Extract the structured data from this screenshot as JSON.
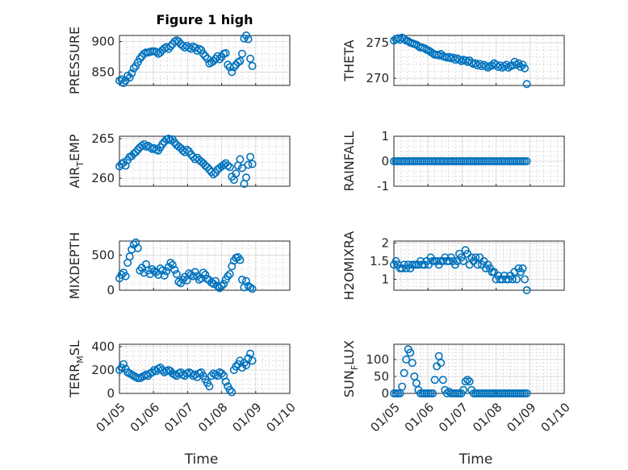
{
  "title": "Figure 1 high",
  "colors": {
    "series": "#0072bd",
    "axis": "#262626"
  },
  "x_axis": {
    "label": "Time",
    "tick_labels": [
      "01/05",
      "01/06",
      "01/07",
      "01/08",
      "01/09",
      "01/10"
    ],
    "xlim_days": [
      5,
      10
    ]
  },
  "chart_data": [
    {
      "type": "scatter",
      "ylabel": "PRESSURE",
      "ylim": [
        828,
        910
      ],
      "yticks": [
        850,
        900
      ],
      "title": "Figure 1 high",
      "grid": true,
      "x": [
        5.0,
        5.06,
        5.12,
        5.18,
        5.24,
        5.3,
        5.36,
        5.42,
        5.48,
        5.54,
        5.6,
        5.66,
        5.72,
        5.78,
        5.84,
        5.9,
        5.96,
        6.02,
        6.08,
        6.14,
        6.2,
        6.26,
        6.32,
        6.38,
        6.44,
        6.5,
        6.56,
        6.62,
        6.68,
        6.74,
        6.8,
        6.86,
        6.92,
        6.98,
        7.04,
        7.1,
        7.16,
        7.22,
        7.28,
        7.34,
        7.4,
        7.46,
        7.52,
        7.58,
        7.64,
        7.7,
        7.76,
        7.82,
        7.88,
        7.94,
        8.0,
        8.06,
        8.12,
        8.18,
        8.24,
        8.3,
        8.36,
        8.42,
        8.48,
        8.54,
        8.6,
        8.66,
        8.72,
        8.78,
        8.84,
        8.9
      ],
      "y": [
        836,
        838,
        832,
        836,
        844,
        841,
        848,
        856,
        860,
        866,
        872,
        876,
        880,
        882,
        882,
        883,
        884,
        884,
        883,
        880,
        882,
        886,
        889,
        891,
        888,
        892,
        896,
        900,
        902,
        900,
        896,
        893,
        890,
        893,
        890,
        888,
        892,
        890,
        885,
        888,
        886,
        880,
        876,
        872,
        864,
        866,
        868,
        872,
        876,
        871,
        875,
        880,
        881,
        862,
        858,
        850,
        858,
        862,
        866,
        868,
        880,
        905,
        910,
        904,
        872,
        860
      ]
    },
    {
      "type": "scatter",
      "ylabel": "THETA",
      "ylim": [
        269,
        276
      ],
      "yticks": [
        270,
        275
      ],
      "grid": true,
      "x": [
        5.0,
        5.06,
        5.12,
        5.18,
        5.24,
        5.3,
        5.36,
        5.42,
        5.48,
        5.54,
        5.6,
        5.66,
        5.72,
        5.78,
        5.84,
        5.9,
        5.96,
        6.02,
        6.08,
        6.14,
        6.2,
        6.26,
        6.32,
        6.38,
        6.44,
        6.5,
        6.56,
        6.62,
        6.68,
        6.74,
        6.8,
        6.86,
        6.92,
        6.98,
        7.04,
        7.1,
        7.16,
        7.22,
        7.28,
        7.34,
        7.4,
        7.46,
        7.52,
        7.58,
        7.64,
        7.7,
        7.76,
        7.82,
        7.88,
        7.94,
        8.0,
        8.06,
        8.12,
        8.18,
        8.24,
        8.3,
        8.36,
        8.42,
        8.48,
        8.54,
        8.6,
        8.66,
        8.72,
        8.78,
        8.84,
        8.9
      ],
      "y": [
        275.3,
        275.5,
        275.6,
        275.4,
        275.7,
        275.5,
        275.3,
        275.2,
        275.0,
        274.9,
        274.8,
        274.7,
        274.5,
        274.3,
        274.3,
        274.2,
        274.0,
        273.9,
        273.7,
        273.5,
        273.3,
        273.3,
        273.2,
        273.4,
        273.1,
        273.0,
        272.9,
        273.0,
        272.8,
        272.9,
        272.6,
        272.8,
        272.6,
        272.4,
        272.6,
        272.5,
        272.3,
        272.5,
        272.2,
        272.0,
        272.1,
        271.8,
        272.0,
        271.7,
        271.9,
        271.7,
        271.5,
        271.7,
        271.8,
        272.1,
        271.9,
        271.6,
        271.8,
        271.5,
        271.7,
        271.9,
        271.5,
        271.7,
        271.8,
        272.3,
        271.9,
        272.1,
        271.6,
        271.9,
        271.4,
        269.2
      ]
    },
    {
      "type": "scatter",
      "ylabel": "AIR_TEMP",
      "ylim": [
        259,
        265.3
      ],
      "yticks": [
        260,
        265
      ],
      "grid": true,
      "x": [
        5.0,
        5.06,
        5.12,
        5.18,
        5.24,
        5.3,
        5.36,
        5.42,
        5.48,
        5.54,
        5.6,
        5.66,
        5.72,
        5.78,
        5.84,
        5.9,
        5.96,
        6.02,
        6.08,
        6.14,
        6.2,
        6.26,
        6.32,
        6.38,
        6.44,
        6.5,
        6.56,
        6.62,
        6.68,
        6.74,
        6.8,
        6.86,
        6.92,
        6.98,
        7.04,
        7.1,
        7.16,
        7.22,
        7.28,
        7.34,
        7.4,
        7.46,
        7.52,
        7.58,
        7.64,
        7.7,
        7.76,
        7.82,
        7.88,
        7.94,
        8.0,
        8.06,
        8.12,
        8.18,
        8.24,
        8.3,
        8.36,
        8.42,
        8.48,
        8.54,
        8.6,
        8.66,
        8.72,
        8.78,
        8.84,
        8.9
      ],
      "y": [
        261.5,
        261.8,
        262.0,
        261.6,
        262.3,
        262.7,
        262.8,
        263.1,
        263.3,
        263.6,
        263.9,
        264.1,
        264.3,
        264.0,
        264.1,
        263.9,
        263.7,
        263.8,
        263.6,
        263.5,
        263.9,
        264.3,
        264.6,
        264.9,
        265.0,
        264.8,
        264.9,
        264.5,
        264.2,
        264.0,
        263.8,
        263.5,
        263.3,
        263.6,
        263.4,
        263.0,
        262.7,
        262.4,
        262.6,
        262.3,
        262.1,
        261.9,
        261.6,
        261.4,
        261.1,
        260.8,
        260.5,
        260.7,
        261.1,
        261.3,
        261.5,
        261.7,
        261.9,
        261.6,
        261.4,
        260.2,
        259.8,
        260.6,
        261.6,
        262.4,
        261.3,
        259.3,
        260.1,
        261.7,
        262.7,
        261.8
      ]
    },
    {
      "type": "scatter",
      "ylabel": "RAINFALL",
      "ylim": [
        -1,
        1
      ],
      "yticks": [
        -1,
        0,
        1
      ],
      "grid": true,
      "x": [
        5.0,
        5.06,
        5.12,
        5.18,
        5.24,
        5.3,
        5.36,
        5.42,
        5.48,
        5.54,
        5.6,
        5.66,
        5.72,
        5.78,
        5.84,
        5.9,
        5.96,
        6.02,
        6.08,
        6.14,
        6.2,
        6.26,
        6.32,
        6.38,
        6.44,
        6.5,
        6.56,
        6.62,
        6.68,
        6.74,
        6.8,
        6.86,
        6.92,
        6.98,
        7.04,
        7.1,
        7.16,
        7.22,
        7.28,
        7.34,
        7.4,
        7.46,
        7.52,
        7.58,
        7.64,
        7.7,
        7.76,
        7.82,
        7.88,
        7.94,
        8.0,
        8.06,
        8.12,
        8.18,
        8.24,
        8.3,
        8.36,
        8.42,
        8.48,
        8.54,
        8.6,
        8.66,
        8.72,
        8.78,
        8.84,
        8.9
      ],
      "y": [
        0,
        0,
        0,
        0,
        0,
        0,
        0,
        0,
        0,
        0,
        0,
        0,
        0,
        0,
        0,
        0,
        0,
        0,
        0,
        0,
        0,
        0,
        0,
        0,
        0,
        0,
        0,
        0,
        0,
        0,
        0,
        0,
        0,
        0,
        0,
        0,
        0,
        0,
        0,
        0,
        0,
        0,
        0,
        0,
        0,
        0,
        0,
        0,
        0,
        0,
        0,
        0,
        0,
        0,
        0,
        0,
        0,
        0,
        0,
        0,
        0,
        0,
        0,
        0,
        0,
        0
      ]
    },
    {
      "type": "scatter",
      "ylabel": "MIXDEPTH",
      "ylim": [
        0,
        700
      ],
      "yticks": [
        0,
        500
      ],
      "grid": true,
      "x": [
        5.0,
        5.06,
        5.12,
        5.18,
        5.24,
        5.3,
        5.36,
        5.42,
        5.48,
        5.54,
        5.6,
        5.66,
        5.72,
        5.78,
        5.84,
        5.9,
        5.96,
        6.02,
        6.08,
        6.14,
        6.2,
        6.26,
        6.32,
        6.38,
        6.44,
        6.5,
        6.56,
        6.62,
        6.68,
        6.74,
        6.8,
        6.86,
        6.92,
        6.98,
        7.04,
        7.1,
        7.16,
        7.22,
        7.28,
        7.34,
        7.4,
        7.46,
        7.52,
        7.58,
        7.64,
        7.7,
        7.76,
        7.82,
        7.88,
        7.94,
        8.0,
        8.06,
        8.12,
        8.18,
        8.24,
        8.3,
        8.36,
        8.42,
        8.48,
        8.54,
        8.6,
        8.66,
        8.72,
        8.78,
        8.84,
        8.9
      ],
      "y": [
        170,
        220,
        250,
        200,
        390,
        480,
        580,
        650,
        680,
        600,
        280,
        320,
        250,
        370,
        280,
        230,
        300,
        270,
        260,
        220,
        310,
        280,
        210,
        270,
        330,
        390,
        360,
        290,
        230,
        120,
        100,
        150,
        190,
        140,
        240,
        220,
        200,
        260,
        200,
        150,
        170,
        250,
        220,
        160,
        140,
        110,
        90,
        130,
        60,
        30,
        60,
        90,
        150,
        200,
        230,
        340,
        420,
        460,
        470,
        430,
        150,
        40,
        130,
        60,
        40,
        20
      ]
    },
    {
      "type": "scatter",
      "ylabel": "H2OMIXRA",
      "ylim": [
        0.7,
        2.05
      ],
      "yticks": [
        1,
        1.5,
        2
      ],
      "grid": true,
      "x": [
        5.0,
        5.06,
        5.12,
        5.18,
        5.24,
        5.3,
        5.36,
        5.42,
        5.48,
        5.54,
        5.6,
        5.66,
        5.72,
        5.78,
        5.84,
        5.9,
        5.96,
        6.02,
        6.08,
        6.14,
        6.2,
        6.26,
        6.32,
        6.38,
        6.44,
        6.5,
        6.56,
        6.62,
        6.68,
        6.74,
        6.8,
        6.86,
        6.92,
        6.98,
        7.04,
        7.1,
        7.16,
        7.22,
        7.28,
        7.34,
        7.4,
        7.46,
        7.52,
        7.58,
        7.64,
        7.7,
        7.76,
        7.82,
        7.88,
        7.94,
        8.0,
        8.06,
        8.12,
        8.18,
        8.24,
        8.3,
        8.36,
        8.42,
        8.48,
        8.54,
        8.6,
        8.66,
        8.72,
        8.78,
        8.84,
        8.9
      ],
      "y": [
        1.4,
        1.5,
        1.4,
        1.3,
        1.3,
        1.4,
        1.3,
        1.4,
        1.3,
        1.4,
        1.4,
        1.4,
        1.4,
        1.5,
        1.4,
        1.4,
        1.5,
        1.4,
        1.6,
        1.5,
        1.5,
        1.5,
        1.4,
        1.5,
        1.5,
        1.6,
        1.5,
        1.5,
        1.6,
        1.5,
        1.4,
        1.5,
        1.7,
        1.6,
        1.5,
        1.8,
        1.7,
        1.4,
        1.6,
        1.5,
        1.6,
        1.4,
        1.6,
        1.4,
        1.5,
        1.3,
        1.4,
        1.3,
        1.2,
        1.2,
        1.0,
        1.1,
        1.0,
        1.0,
        1.1,
        1.0,
        1.0,
        1.1,
        1.0,
        1.2,
        1.0,
        1.3,
        1.2,
        1.3,
        1.0,
        0.7
      ]
    },
    {
      "type": "scatter",
      "ylabel": "TERR_MSL",
      "ylim": [
        0,
        420
      ],
      "yticks": [
        0,
        200,
        400
      ],
      "grid": true,
      "x": [
        5.0,
        5.06,
        5.12,
        5.18,
        5.24,
        5.3,
        5.36,
        5.42,
        5.48,
        5.54,
        5.6,
        5.66,
        5.72,
        5.78,
        5.84,
        5.9,
        5.96,
        6.02,
        6.08,
        6.14,
        6.2,
        6.26,
        6.32,
        6.38,
        6.44,
        6.5,
        6.56,
        6.62,
        6.68,
        6.74,
        6.8,
        6.86,
        6.92,
        6.98,
        7.04,
        7.1,
        7.16,
        7.22,
        7.28,
        7.34,
        7.4,
        7.46,
        7.52,
        7.58,
        7.64,
        7.7,
        7.76,
        7.82,
        7.88,
        7.94,
        8.0,
        8.06,
        8.12,
        8.18,
        8.24,
        8.3,
        8.36,
        8.42,
        8.48,
        8.54,
        8.6,
        8.66,
        8.72,
        8.78,
        8.84,
        8.9
      ],
      "y": [
        200,
        220,
        250,
        210,
        180,
        170,
        160,
        150,
        140,
        130,
        130,
        140,
        150,
        160,
        150,
        170,
        180,
        200,
        190,
        210,
        220,
        200,
        180,
        190,
        200,
        190,
        170,
        160,
        150,
        170,
        180,
        160,
        150,
        170,
        180,
        170,
        150,
        160,
        140,
        170,
        180,
        150,
        120,
        90,
        60,
        150,
        170,
        160,
        150,
        180,
        170,
        150,
        100,
        60,
        30,
        10,
        200,
        230,
        250,
        280,
        220,
        260,
        240,
        300,
        340,
        280
      ]
    },
    {
      "type": "scatter",
      "ylabel": "SUN_FLUX",
      "ylim": [
        0,
        145
      ],
      "yticks": [
        0,
        50,
        100
      ],
      "grid": true,
      "x": [
        5.0,
        5.06,
        5.12,
        5.18,
        5.24,
        5.3,
        5.36,
        5.42,
        5.48,
        5.54,
        5.6,
        5.66,
        5.72,
        5.78,
        5.84,
        5.9,
        5.96,
        6.02,
        6.08,
        6.14,
        6.2,
        6.26,
        6.32,
        6.38,
        6.44,
        6.5,
        6.56,
        6.62,
        6.68,
        6.74,
        6.8,
        6.86,
        6.92,
        6.98,
        7.04,
        7.1,
        7.16,
        7.22,
        7.28,
        7.34,
        7.4,
        7.46,
        7.52,
        7.58,
        7.64,
        7.7,
        7.76,
        7.82,
        7.88,
        7.94,
        8.0,
        8.06,
        8.12,
        8.18,
        8.24,
        8.3,
        8.36,
        8.42,
        8.48,
        8.54,
        8.6,
        8.66,
        8.72,
        8.78,
        8.84,
        8.9
      ],
      "y": [
        0,
        0,
        0,
        0,
        20,
        60,
        100,
        130,
        120,
        90,
        50,
        30,
        10,
        0,
        0,
        0,
        0,
        0,
        0,
        0,
        40,
        80,
        110,
        90,
        40,
        10,
        0,
        5,
        0,
        0,
        0,
        0,
        0,
        0,
        10,
        35,
        40,
        35,
        10,
        0,
        0,
        0,
        0,
        0,
        0,
        0,
        0,
        0,
        0,
        0,
        0,
        0,
        0,
        0,
        0,
        0,
        0,
        0,
        0,
        0,
        0,
        0,
        0,
        0,
        0,
        0
      ]
    }
  ]
}
